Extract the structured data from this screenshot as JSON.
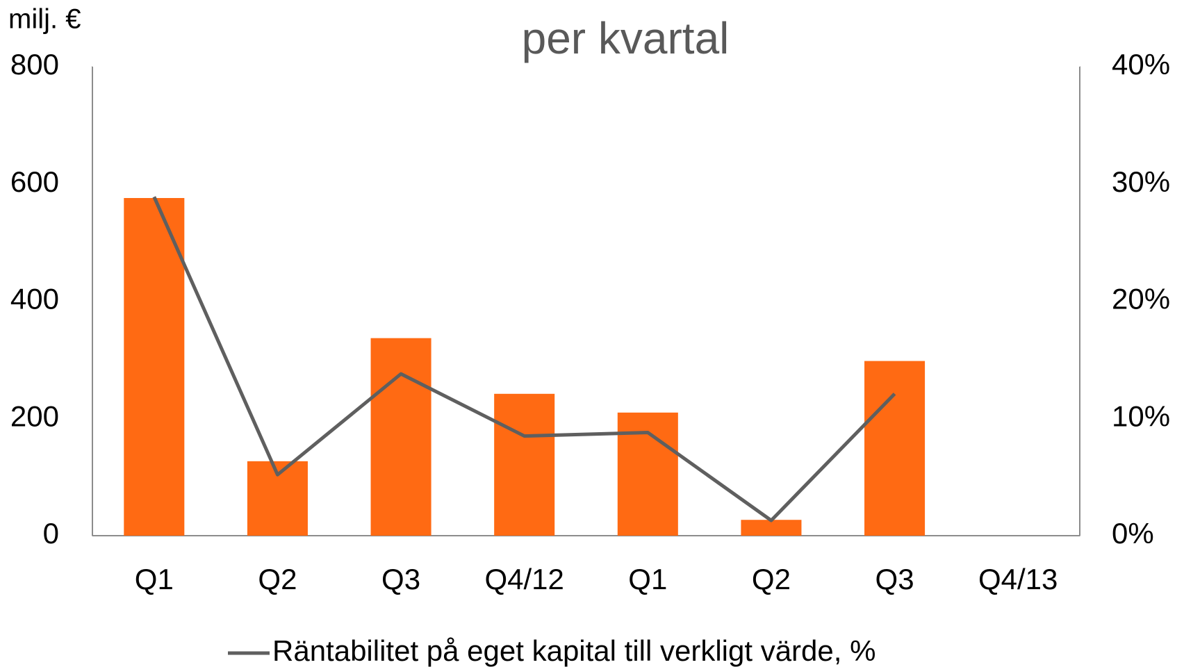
{
  "chart_data": {
    "type": "bar",
    "title": "per kvartal",
    "y_label": "milj. €",
    "categories": [
      "Q1",
      "Q2",
      "Q3",
      "Q4/12",
      "Q1",
      "Q2",
      "Q3",
      "Q4/13"
    ],
    "series": [
      {
        "color": "#ff6a13",
        "values": [
          576,
          127,
          337,
          242,
          210,
          27,
          298,
          null
        ]
      },
      {
        "name": "Räntabilitet på eget kapital till verkligt värde, %",
        "color": "#5f5f5f",
        "axis": "y2",
        "type": "line",
        "values": [
          28.9,
          5.2,
          13.8,
          8.5,
          8.8,
          1.3,
          12.1,
          null
        ]
      }
    ],
    "ylim": [
      0,
      800
    ],
    "yticks": [
      0,
      200,
      400,
      600,
      800
    ],
    "y2lim": [
      0,
      40
    ],
    "y2ticks": [
      {
        "value": 0,
        "label": "0%"
      },
      {
        "value": 10,
        "label": "10%"
      },
      {
        "value": 20,
        "label": "20%"
      },
      {
        "value": 30,
        "label": "30%"
      },
      {
        "value": 40,
        "label": "40%"
      }
    ],
    "grid": false,
    "legend": "bottom"
  }
}
